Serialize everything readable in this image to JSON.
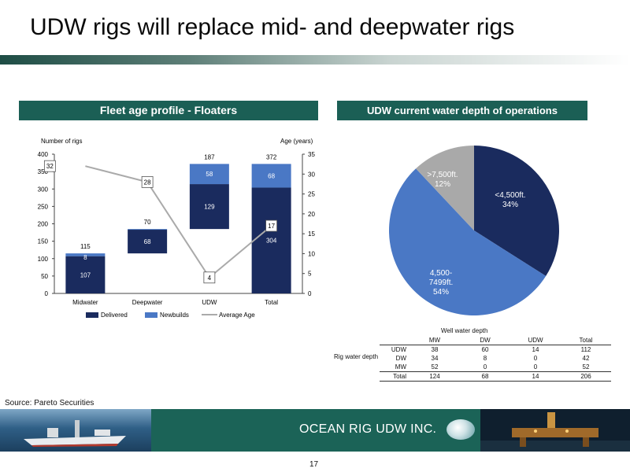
{
  "slide": {
    "title": "UDW rigs will replace mid- and deepwater rigs",
    "source": "Source: Pareto Securities",
    "company": "OCEAN RIG UDW INC.",
    "page_number": "17",
    "colors": {
      "header_bg": "#1b5f55",
      "delivered": "#1a2b5e",
      "newbuilds": "#4a78c5",
      "average_age": "#aaaaaa"
    }
  },
  "left_panel": {
    "header": "Fleet age profile - Floaters"
  },
  "right_panel": {
    "header": "UDW current water depth of operations"
  },
  "chart_data": [
    {
      "type": "bar",
      "title": "Fleet age profile - Floaters",
      "stacked": true,
      "categories": [
        "Midwater",
        "Deepwater",
        "UDW",
        "Total"
      ],
      "series": [
        {
          "name": "Delivered",
          "values": [
            107,
            68,
            129,
            304
          ],
          "color": "#1a2b5e",
          "labels": [
            "107",
            "68",
            "129",
            "304"
          ]
        },
        {
          "name": "Newbuilds",
          "values": [
            8,
            2,
            58,
            68
          ],
          "color": "#4a78c5",
          "labels": [
            "8",
            "",
            "58",
            "68"
          ]
        }
      ],
      "floating": [
        false,
        true,
        true,
        false
      ],
      "total_labels": [
        "115",
        "70",
        "187",
        "372"
      ],
      "line_series": {
        "name": "Average Age",
        "values": [
          32,
          28,
          4,
          17
        ],
        "labels": [
          "32",
          "28",
          "4",
          "17"
        ],
        "axis": "right",
        "color": "#aaaaaa"
      },
      "ylabel": "Number of rigs",
      "y2label": "Age (years)",
      "ylim": [
        0,
        400
      ],
      "y_ticks": [
        "0",
        "50",
        "100",
        "150",
        "200",
        "250",
        "300",
        "350",
        "400"
      ],
      "y2lim": [
        0,
        35
      ],
      "y2_ticks": [
        "0",
        "5",
        "10",
        "15",
        "20",
        "25",
        "30",
        "35"
      ],
      "legend": "bottom",
      "grid": false
    },
    {
      "type": "pie",
      "title": "UDW current water depth of operations",
      "slices": [
        {
          "name": "<4,500ft.",
          "value": 34,
          "label": "<4,500ft.",
          "pct": "34%",
          "color": "#1a2b5e"
        },
        {
          "name": "4,500-7499ft.",
          "value": 54,
          "label": "4,500-",
          "label2": "7499ft.",
          "pct": "54%",
          "color": "#4a78c5"
        },
        {
          "name": ">7,500ft.",
          "value": 12,
          "label": ">7,500ft.",
          "pct": "12%",
          "color": "#a9a9a9"
        }
      ]
    },
    {
      "type": "table",
      "title": "Well water depth",
      "row_title": "Rig water depth",
      "columns": [
        "MW",
        "DW",
        "UDW",
        "Total"
      ],
      "rows": [
        {
          "label": "UDW",
          "values": [
            "38",
            "60",
            "14",
            "112"
          ]
        },
        {
          "label": "DW",
          "values": [
            "34",
            "8",
            "0",
            "42"
          ]
        },
        {
          "label": "MW",
          "values": [
            "52",
            "0",
            "0",
            "52"
          ]
        },
        {
          "label": "Total",
          "values": [
            "124",
            "68",
            "14",
            "206"
          ]
        }
      ]
    }
  ]
}
